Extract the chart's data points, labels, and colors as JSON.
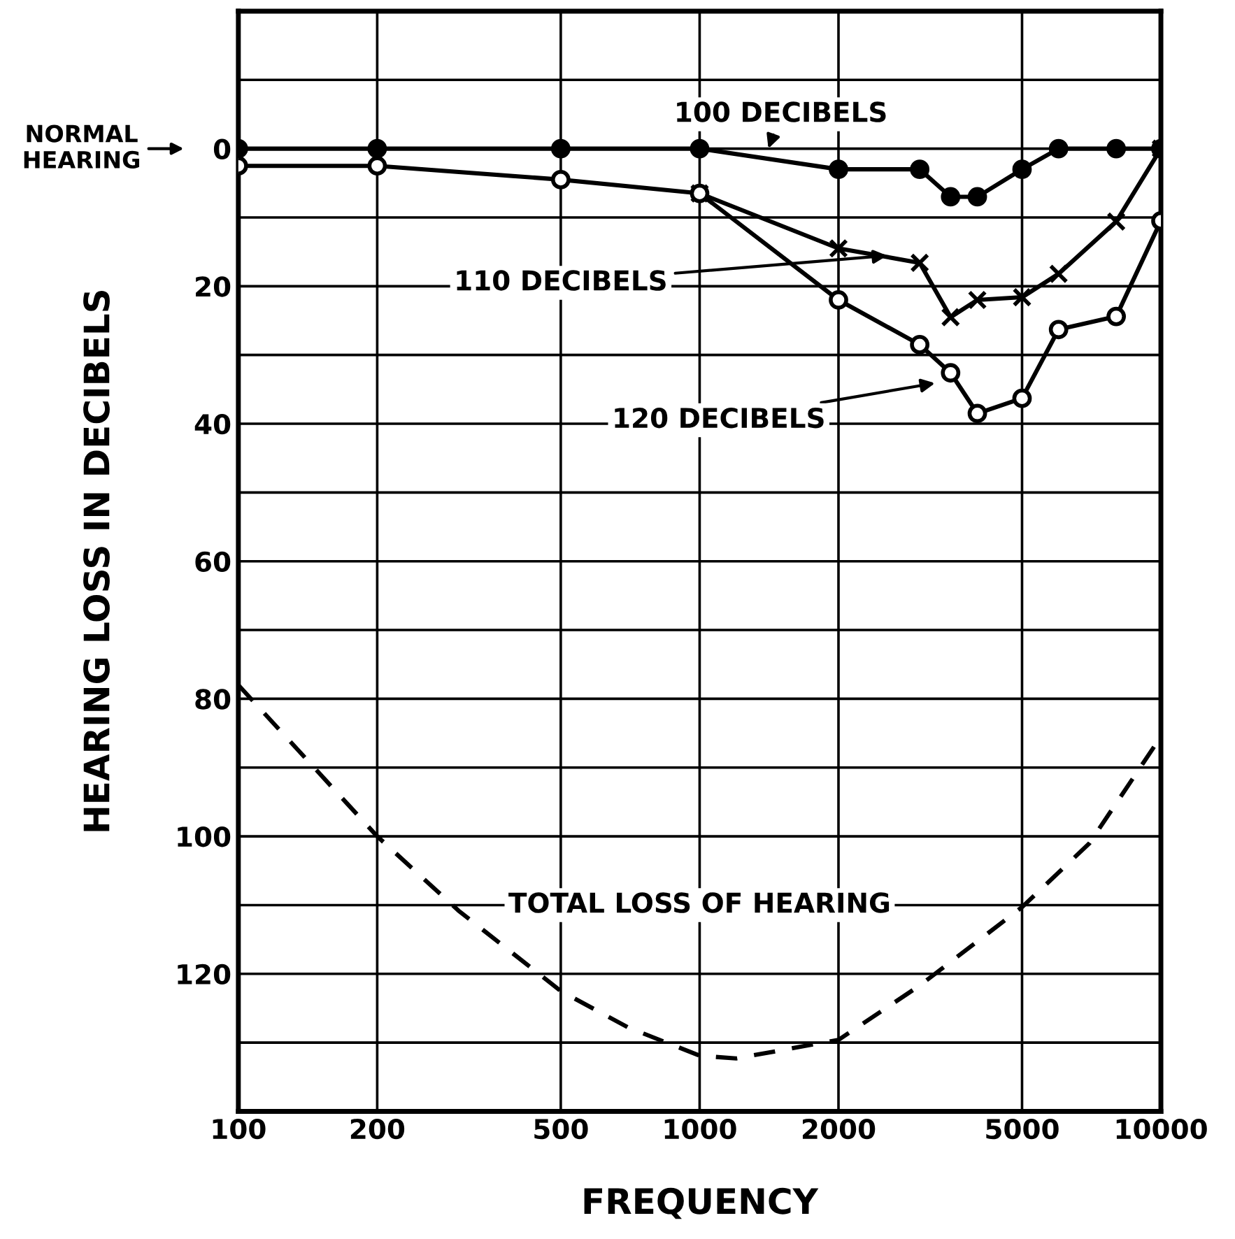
{
  "chart_data": {
    "type": "line",
    "xlabel": "FREQUENCY",
    "ylabel": "HEARING LOSS IN DECIBELS",
    "log": "x",
    "grid": true,
    "legend": false,
    "xlim": [
      100,
      10000
    ],
    "xticks": [
      100,
      200,
      500,
      1000,
      2000,
      5000,
      10000
    ],
    "ylim": [
      140,
      -20
    ],
    "yticks": [
      {
        "value": -20,
        "label": null
      },
      {
        "value": -10,
        "label": null
      },
      0,
      {
        "value": 10,
        "label": null
      },
      20,
      {
        "value": 30,
        "label": null
      },
      40,
      {
        "value": 50,
        "label": null
      },
      60,
      {
        "value": 70,
        "label": null
      },
      80,
      {
        "value": 90,
        "label": null
      },
      100,
      {
        "value": 110,
        "label": null
      },
      120,
      {
        "value": 130,
        "label": null
      },
      {
        "value": 140,
        "label": null
      }
    ],
    "annotations": [
      "NORMAL HEARING"
    ],
    "series": [
      {
        "name": "100 DECIBELS",
        "color": "#000000",
        "marker": "circle",
        "line_style": "solid",
        "x": [
          100,
          200,
          500,
          1000,
          2000,
          3000,
          3500,
          4000,
          5000,
          6000,
          8000,
          10000
        ],
        "values": [
          0,
          0,
          0,
          0,
          3,
          3,
          7,
          7,
          3,
          0,
          0,
          0
        ]
      },
      {
        "name": "110 DECIBELS",
        "color": "#000000",
        "marker": "cross",
        "line_style": "solid",
        "x": [
          1000,
          2000,
          3000,
          3500,
          4000,
          5000,
          6000,
          8000,
          10000
        ],
        "values": [
          6.5,
          14.5,
          16.6,
          24.5,
          22,
          21.6,
          18.2,
          10.6,
          0
        ]
      },
      {
        "name": "120 DECIBELS",
        "color": "#000000",
        "marker": "circle",
        "line_style": "solid",
        "x": [
          100,
          200,
          500,
          1000,
          2000,
          3000,
          3500,
          4000,
          5000,
          6000,
          8000,
          10000
        ],
        "values": [
          2.5,
          2.5,
          4.5,
          6.5,
          22,
          28.5,
          32.6,
          38.5,
          36.3,
          26.3,
          24.4,
          10.5
        ]
      },
      {
        "name": "TOTAL LOSS OF HEARING",
        "color": "#000000",
        "marker": "none",
        "line_style": "dashed",
        "x": [
          100,
          200,
          300,
          500,
          700,
          1000,
          1200,
          2000,
          3000,
          5000,
          7000,
          10000
        ],
        "values": [
          78,
          100,
          110.8,
          122.5,
          127.8,
          131.9,
          132.3,
          129.6,
          121.7,
          110.3,
          101,
          85.5
        ]
      }
    ]
  }
}
